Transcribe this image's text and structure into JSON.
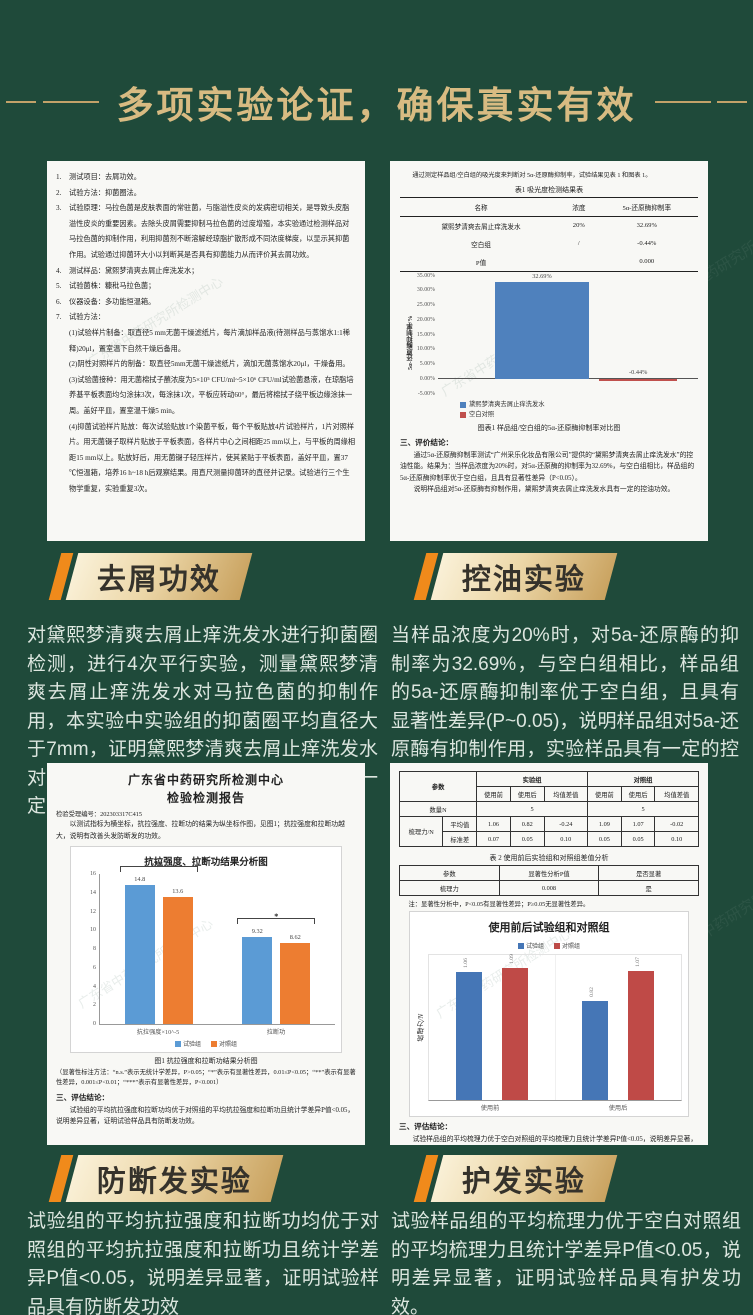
{
  "header": {
    "title": "多项实验论证，确保真实有效"
  },
  "watermark": "广东省中药研究所检测中心",
  "colors": {
    "background": "#1f4a3a",
    "gold_title": "#d8bb82",
    "badge_orange": "#f08a1b",
    "oil_blue": "#4f81bd",
    "oil_red": "#c0504d",
    "strength_blue": "#5b9bd5",
    "strength_orange": "#ed7d31",
    "comb_blue": "#4576b6",
    "comb_red": "#bf4a47"
  },
  "doc_dandruff": {
    "items": [
      {
        "num": "1.",
        "text": "测试项目：去屑功效。"
      },
      {
        "num": "2.",
        "text": "试验方法：抑菌圈法。"
      },
      {
        "num": "3.",
        "text": "试验原理：马拉色菌是皮肤表面的常驻菌，与脂溢性皮炎的发病密切相关，是导致头皮脂溢性皮炎的重要因素。去除头皮屑需要抑制马拉色菌的过度增殖，本实验通过检测样品对马拉色菌的抑制作用，利用抑菌剂不断溶解经琼脂扩散形成不同浓度梯度，以显示其抑菌作用。试验通过抑菌环大小以判断其是否具有抑菌能力从而评价其去屑功效。"
      },
      {
        "num": "4.",
        "text": "测试样品：黛熙梦清爽去屑止痒洗发水；"
      },
      {
        "num": "5.",
        "text": "试验菌株：糠秕马拉色菌；"
      },
      {
        "num": "6.",
        "text": "仪器设备：多功能恒温箱。"
      },
      {
        "num": "7.",
        "text": "试验方法："
      }
    ],
    "sub_items": [
      "(1)试验样片制备：取直径5 mm无菌干燥滤纸片，每片滴加样品液(待测样品与蒸馏水1:1稀释)20μl，置室温下自然干燥后备用。",
      "(2)阴性对照样片的制备：取直径5mm无菌干燥滤纸片，滴加无菌蒸馏水20μl，干燥备用。",
      "(3)试验菌接种：用无菌棉拭子蘸浓度为5×10⁵ CFU/ml~5×10⁶ CFU/ml试验菌悬液，在琼脂培养基平板表面均匀涂抹3次，每涂抹1次，平板应转动60°，最后将棉拭子绕平板边缘涂抹一周。盖好平皿，置室温干燥5 min。",
      "(4)抑菌试验样片贴放：每次试验贴放1个染菌平板，每个平板贴放4片试验样片，1片对照样片。用无菌镊子取样片贴放于平板表面，各样片中心之间相距25 mm以上，与平板的周缘相距15 mm以上。贴放好后，用无菌镊子轻压样片，使其紧贴于平板表面，盖好平皿，置37 ℃恒温箱，培养16 h~18 h后观察结果。用直尺测量抑菌环的直径并记录。试验进行三个生物学重复，实验重复3次。"
    ]
  },
  "doc_oil": {
    "intro": "通过测定样品组/空白组的吸光度来判断对 5α-还原酶抑制率，试验结果见表 1 和图表 1。",
    "table": {
      "title": "表1 吸光度检测结果表",
      "headers": [
        "名称",
        "浓度",
        "5α-还原酶抑制率"
      ],
      "rows": [
        [
          "黛熙梦清爽去屑止痒洗发水",
          "20%",
          "32.69%"
        ],
        [
          "空白组",
          "/",
          "-0.44%"
        ],
        [
          "P值",
          "",
          "0.000"
        ]
      ]
    },
    "conclusion_heading": "三、评价结论：",
    "paragraphs": [
      "通过5α-还原酶抑制率测试“广州采乐化妆品有限公司”提供的“黛熙梦清爽去屑止痒洗发水”的控油性能。结果为：当样品浓度为20%时，对5α-还原酶的抑制率为32.69%，与空白组相比，样品组的5α-还原酶抑制率优于空白组，且具有显著性差异（P<0.05）。",
      "说明样品组对5α-还原酶有抑制作用，黛熙梦清爽去屑止痒洗发水具有一定的控油功效。"
    ]
  },
  "sections": [
    {
      "badge": "去屑功效",
      "text": "对黛熙梦清爽去屑止痒洗发水进行抑菌圈检测，进行4次平行实验，测量黛熙梦清爽去屑止痒洗发水对马拉色菌的抑制作用，本实验中实验组的抑菌圈平均直径大于7mm，证明黛熙梦清爽去屑止痒洗发水对糠马拉色菌有抑制作用，该样品具有一定的去屑功效。"
    },
    {
      "badge": "控油实验",
      "text": "当样品浓度为20%时，对5a-还原酶的抑制率为32.69%，与空白组相比，样品组的5a-还原酶抑制率优于空白组，且具有显著性差异(P~0.05)，说明样品组对5a-还原酶有抑制作用，实验样品具有一定的控油功效。"
    },
    {
      "badge": "防断发实验",
      "text": "试验组的平均抗拉强度和拉断功均优于对照组的平均抗拉强度和拉断功且统计学差异P值<0.05，说明差异显著，证明试验样品具有防断发功效"
    },
    {
      "badge": "护发实验",
      "text": "试验样品组的平均梳理力优于空白对照组的平均梳理力且统计学差异P值<0.05，说明差异显著，证明试验样品具有护发功效。"
    }
  ],
  "doc_strength": {
    "org": "广东省中药研究所检测中心",
    "report_title": "检验检测报告",
    "report_no": "检验受理编号：202303317C415",
    "intro": "以测试指标为横坐标，抗拉强度、拉断功的结果为纵坐标作图，见图1；抗拉强度和拉断功越大，说明有改善头发防断发的功效。",
    "footnote": "（显著性标注方法：“n.s.”表示无统计学差异，P>0.05；“*”表示有显著性差异，0.01≤P<0.05；“**”表示有显著性差异，0.001≤P<0.01；“***”表示有显著性差异，P<0.001）",
    "conclusion_heading": "三、评估结论：",
    "conclusion": "试验组的平均抗拉强度和拉断功均优于对照组的平均抗拉强度和拉断功且统计学差异P值<0.05，说明差异显著，证明试验样品具有防断发功效。"
  },
  "doc_comb": {
    "table1": {
      "corner": "参数",
      "group_headers": [
        "实验组",
        "对照组"
      ],
      "sub_headers": [
        "使用前",
        "使用后",
        "均值差值",
        "使用前",
        "使用后",
        "均值差值"
      ],
      "count_label": "数量N",
      "count_values": [
        "5",
        "5"
      ],
      "metric_label": "梳理力/N",
      "rows": [
        {
          "label": "平均值",
          "values": [
            "1.06",
            "0.82",
            "-0.24",
            "1.09",
            "1.07",
            "-0.02"
          ]
        },
        {
          "label": "标准差",
          "values": [
            "0.07",
            "0.05",
            "0.10",
            "0.05",
            "0.05",
            "0.10"
          ]
        }
      ]
    },
    "table2_title": "表 2 使用前后实验组和对照组差值分析",
    "table2": {
      "headers": [
        "参数",
        "显著性分析P值",
        "是否显著"
      ],
      "rows": [
        [
          "梳理力",
          "0.008",
          "是"
        ]
      ]
    },
    "note": "注：显著性分析中，P<0.05有显著性差异；P≥0.05无显著性差异。",
    "conclusion_heading": "三、评估结论：",
    "conclusion": "试验样品组的平均梳理力优于空白对照组的平均梳理力且统计学差异P值<0.05，说明差异显著，证明试验样品具有护发功效。"
  },
  "chart_data": [
    {
      "id": "oil",
      "type": "bar",
      "caption": "图表1 样品组/空白组的5α-还原酶抑制率对比图",
      "ylabel": "5α-还原酶抑制率/%",
      "ylim": [
        -5,
        35
      ],
      "ytick_step": 5,
      "series": [
        {
          "name": "黛熙梦清爽去屑止痒洗发水",
          "color": "#4f81bd",
          "values": [
            32.69
          ],
          "value_labels": [
            "32.69%"
          ]
        },
        {
          "name": "空白对照",
          "color": "#c0504d",
          "values": [
            -0.44
          ],
          "value_labels": [
            "-0.44%"
          ]
        }
      ],
      "legend_position": "bottom"
    },
    {
      "id": "strength",
      "type": "bar",
      "title": "抗拉强度、拉断功结果分析图",
      "caption": "图1 抗拉强度和拉断功结果分析图",
      "categories": [
        "抗拉强度×10^-5",
        "拉断功"
      ],
      "ylim": [
        0,
        16
      ],
      "ytick_step": 2,
      "series": [
        {
          "name": "试验组",
          "color": "#5b9bd5",
          "values": [
            14.8,
            9.32
          ],
          "value_labels": [
            "14.8",
            "9.32"
          ]
        },
        {
          "name": "对照组",
          "color": "#ed7d31",
          "values": [
            13.6,
            8.62
          ],
          "value_labels": [
            "13.6",
            "8.62"
          ]
        }
      ],
      "significance": [
        "**",
        "*"
      ],
      "legend_position": "bottom"
    },
    {
      "id": "comb",
      "type": "bar",
      "title": "使用前后试验组和对照组",
      "ylabel": "梳理力/N",
      "categories": [
        "使用前",
        "使用后"
      ],
      "ylim": [
        0,
        1.2
      ],
      "series": [
        {
          "name": "试验组",
          "color": "#4576b6",
          "values": [
            1.06,
            0.82
          ],
          "value_labels": [
            "1.06",
            "0.82"
          ]
        },
        {
          "name": "对照组",
          "color": "#bf4a47",
          "values": [
            1.09,
            1.07
          ],
          "value_labels": [
            "1.09",
            "1.07"
          ]
        }
      ],
      "legend_position": "top"
    }
  ]
}
